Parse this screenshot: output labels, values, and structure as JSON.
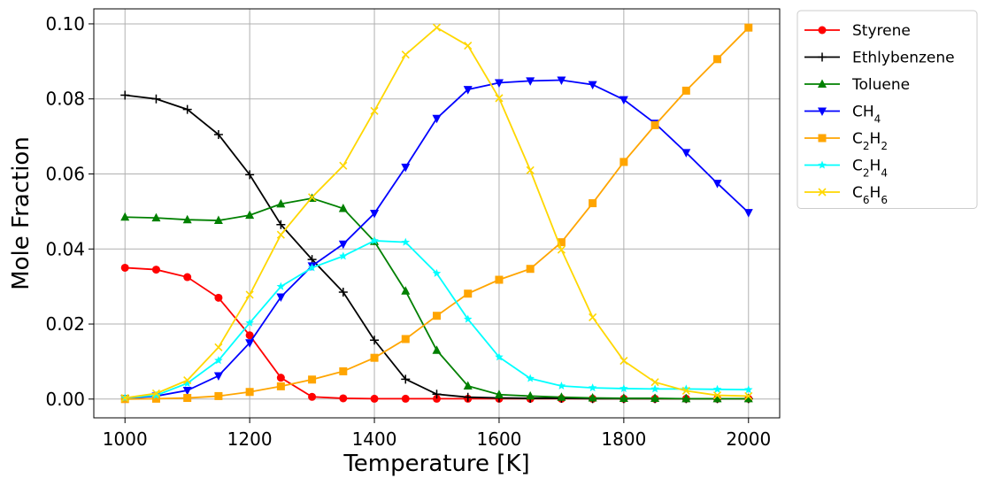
{
  "chart_data": {
    "type": "line",
    "xlabel": "Temperature [K]",
    "ylabel": "Mole Fraction",
    "xlim": [
      950,
      2050
    ],
    "ylim": [
      -0.005,
      0.104
    ],
    "x_ticks": [
      1000,
      1200,
      1400,
      1600,
      1800,
      2000
    ],
    "y_ticks": [
      0.0,
      0.02,
      0.04,
      0.06,
      0.08,
      0.1
    ],
    "x_tick_labels": [
      "1000",
      "1200",
      "1400",
      "1600",
      "1800",
      "2000"
    ],
    "y_tick_labels": [
      "0.00",
      "0.02",
      "0.04",
      "0.06",
      "0.08",
      "0.10"
    ],
    "grid": true,
    "legend_position": "outside-right-top",
    "x": [
      1000,
      1050,
      1100,
      1150,
      1200,
      1250,
      1300,
      1350,
      1400,
      1450,
      1500,
      1550,
      1600,
      1650,
      1700,
      1750,
      1800,
      1850,
      1900,
      1950,
      2000
    ],
    "series": [
      {
        "name": "Styrene",
        "color": "#ff0000",
        "marker": "circle",
        "values": [
          0.035,
          0.0345,
          0.0325,
          0.027,
          0.017,
          0.0057,
          0.0006,
          0.0002,
          0.0001,
          0.0001,
          0.0001,
          0.0001,
          0.0001,
          0.0001,
          0.0001,
          0.0001,
          0.0001,
          0.0001,
          0.0001,
          0.0001,
          0.0001
        ]
      },
      {
        "name": "Ethlybenzene",
        "color": "#000000",
        "marker": "plus",
        "values": [
          0.081,
          0.08,
          0.0772,
          0.0705,
          0.0598,
          0.0465,
          0.0372,
          0.0285,
          0.0157,
          0.0053,
          0.0013,
          0.0005,
          0.0003,
          0.0002,
          0.0002,
          0.0001,
          0.0001,
          0.0001,
          0.0001,
          0.0001,
          0.0001
        ]
      },
      {
        "name": "Toluene",
        "color": "#008000",
        "marker": "triangle-up",
        "values": [
          0.0485,
          0.0483,
          0.0478,
          0.0476,
          0.049,
          0.052,
          0.0535,
          0.0508,
          0.042,
          0.0288,
          0.013,
          0.0035,
          0.0012,
          0.0008,
          0.0005,
          0.0003,
          0.0002,
          0.0002,
          0.0001,
          0.0001,
          0.0001
        ]
      },
      {
        "name": "CH",
        "sub": "4",
        "color": "#0000ff",
        "marker": "triangle-down",
        "values": [
          0.0002,
          0.0008,
          0.0023,
          0.0062,
          0.015,
          0.0272,
          0.0355,
          0.0413,
          0.0495,
          0.0618,
          0.0748,
          0.0825,
          0.0843,
          0.0848,
          0.085,
          0.0838,
          0.0798,
          0.0735,
          0.0657,
          0.0575,
          0.0497
        ]
      },
      {
        "name": "C₂H₂",
        "segments": [
          "C",
          "2",
          "H",
          "2"
        ],
        "color": "#ffa500",
        "marker": "square",
        "values": [
          0.0,
          0.0001,
          0.0003,
          0.0008,
          0.0019,
          0.0034,
          0.0052,
          0.0074,
          0.011,
          0.016,
          0.0222,
          0.0281,
          0.0318,
          0.0347,
          0.0418,
          0.0522,
          0.0632,
          0.073,
          0.0822,
          0.0906,
          0.099
        ]
      },
      {
        "name": "C₂H₄",
        "segments": [
          "C",
          "2",
          "H",
          "4"
        ],
        "color": "#00ffff",
        "marker": "star",
        "values": [
          0.0003,
          0.001,
          0.0042,
          0.0103,
          0.0203,
          0.03,
          0.035,
          0.0381,
          0.0422,
          0.0418,
          0.0335,
          0.0213,
          0.0112,
          0.0055,
          0.0035,
          0.003,
          0.0028,
          0.0027,
          0.0027,
          0.0026,
          0.0025
        ]
      },
      {
        "name": "C₆H₆",
        "segments": [
          "C",
          "6",
          "H",
          "6"
        ],
        "color": "#ffd700",
        "marker": "x",
        "values": [
          0.0003,
          0.0015,
          0.005,
          0.0138,
          0.0278,
          0.0438,
          0.0538,
          0.0622,
          0.0768,
          0.0918,
          0.099,
          0.0942,
          0.0802,
          0.061,
          0.0398,
          0.0218,
          0.0102,
          0.0045,
          0.0022,
          0.001,
          0.0008
        ]
      }
    ]
  }
}
